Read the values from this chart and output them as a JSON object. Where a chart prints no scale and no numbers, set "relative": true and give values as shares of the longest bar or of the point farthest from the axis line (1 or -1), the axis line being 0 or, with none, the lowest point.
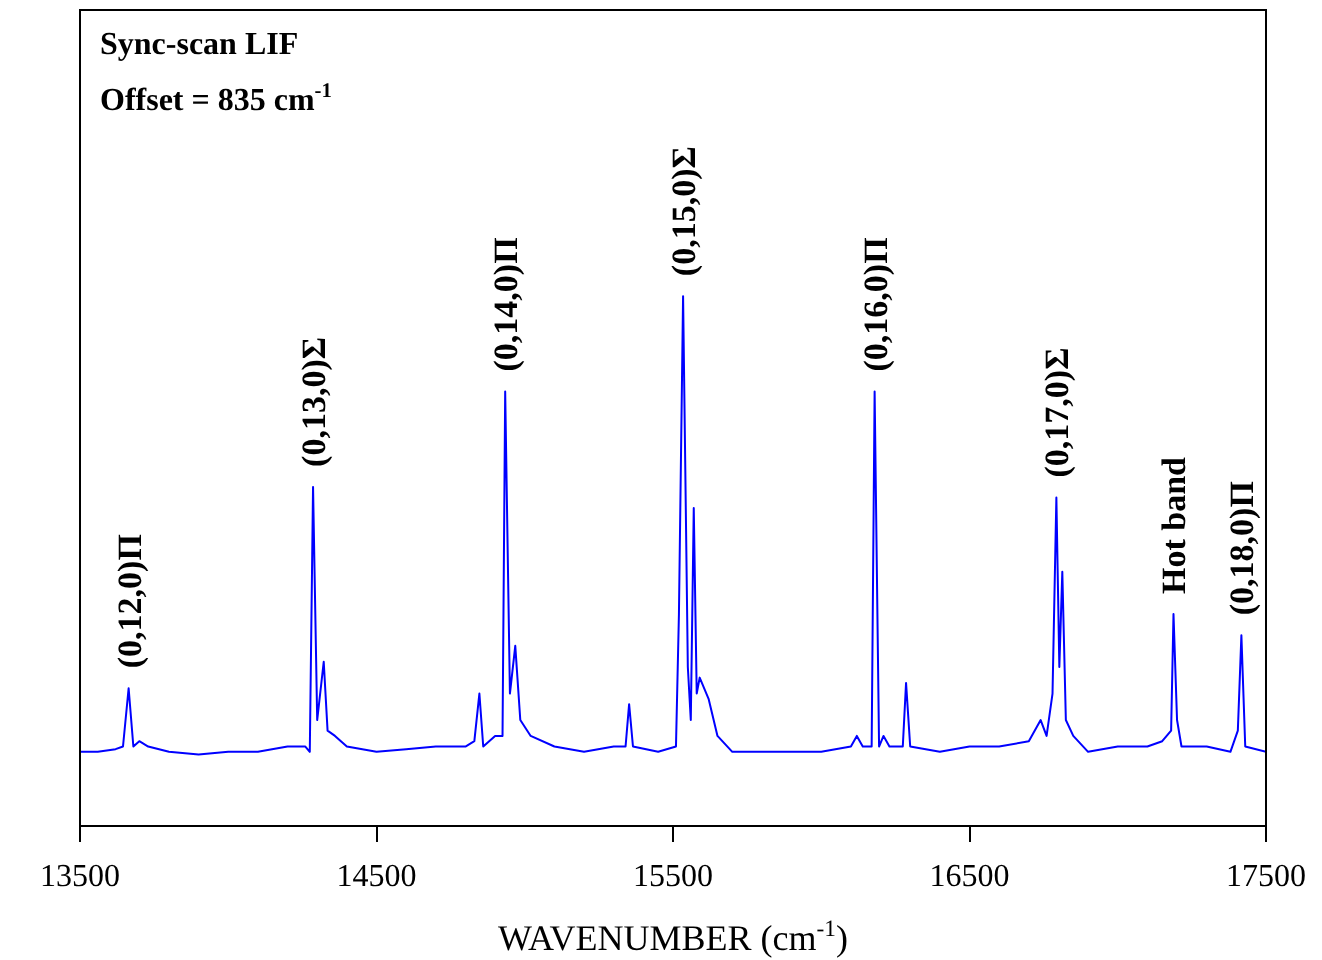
{
  "chart_data": {
    "type": "line",
    "title": "Sync-scan LIF",
    "subtitle": "Offset = 835 cm$^{-1}$",
    "xlabel": "WAVENUMBER (cm$^{-1}$)",
    "relative": true,
    "grid": false,
    "legend": false,
    "marker": "none",
    "line_style": "solid",
    "tick_labels": "x",
    "xlim": [
      13500,
      17500
    ],
    "xticks": [
      13500,
      14500,
      15500,
      16500,
      17500
    ],
    "x": [
      13500,
      13560,
      13620,
      13645,
      13664,
      13680,
      13700,
      13730,
      13800,
      13900,
      14000,
      14100,
      14200,
      14260,
      14275,
      14286,
      14300,
      14322,
      14335,
      14360,
      14400,
      14500,
      14600,
      14700,
      14800,
      14830,
      14847,
      14860,
      14900,
      14925,
      14934,
      14950,
      14968,
      14985,
      15020,
      15100,
      15200,
      15300,
      15340,
      15352,
      15365,
      15450,
      15510,
      15520,
      15534,
      15550,
      15560,
      15570,
      15580,
      15590,
      15620,
      15650,
      15700,
      15800,
      15900,
      16000,
      16100,
      16120,
      16140,
      16170,
      16180,
      16195,
      16210,
      16230,
      16275,
      16286,
      16300,
      16400,
      16500,
      16600,
      16700,
      16740,
      16760,
      16780,
      16793,
      16803,
      16813,
      16825,
      16850,
      16900,
      17000,
      17100,
      17150,
      17180,
      17188,
      17200,
      17215,
      17300,
      17380,
      17405,
      17417,
      17430,
      17500
    ],
    "series": [
      {
        "color": "#0000ff",
        "values": [
          0.14,
          0.14,
          0.145,
          0.15,
          0.26,
          0.15,
          0.16,
          0.15,
          0.14,
          0.135,
          0.14,
          0.14,
          0.15,
          0.15,
          0.14,
          0.64,
          0.2,
          0.31,
          0.18,
          0.17,
          0.15,
          0.14,
          0.145,
          0.15,
          0.15,
          0.16,
          0.25,
          0.15,
          0.17,
          0.17,
          0.82,
          0.25,
          0.34,
          0.2,
          0.17,
          0.15,
          0.14,
          0.15,
          0.15,
          0.23,
          0.15,
          0.14,
          0.15,
          0.4,
          1.0,
          0.3,
          0.2,
          0.6,
          0.25,
          0.28,
          0.24,
          0.17,
          0.14,
          0.14,
          0.14,
          0.14,
          0.15,
          0.17,
          0.15,
          0.15,
          0.82,
          0.15,
          0.17,
          0.15,
          0.15,
          0.27,
          0.15,
          0.14,
          0.15,
          0.15,
          0.16,
          0.2,
          0.17,
          0.25,
          0.62,
          0.3,
          0.48,
          0.2,
          0.17,
          0.14,
          0.15,
          0.15,
          0.16,
          0.18,
          0.4,
          0.2,
          0.15,
          0.15,
          0.14,
          0.18,
          0.36,
          0.15,
          0.14
        ]
      }
    ],
    "annotations": [
      {
        "text": "(0,12,0)Π",
        "x": 13664,
        "y": 0.26
      },
      {
        "text": "(0,13,0)Σ",
        "x": 14286,
        "y": 0.64
      },
      {
        "text": "(0,14,0)Π",
        "x": 14934,
        "y": 0.82
      },
      {
        "text": "(0,15,0)Σ",
        "x": 15534,
        "y": 1.0
      },
      {
        "text": "(0,16,0)Π",
        "x": 16180,
        "y": 0.82
      },
      {
        "text": "(0,17,0)Σ",
        "x": 16793,
        "y": 0.62
      },
      {
        "text": "Hot band",
        "x": 17188,
        "y": 0.4
      },
      {
        "text": "(0,18,0)Π",
        "x": 17417,
        "y": 0.36
      }
    ]
  }
}
